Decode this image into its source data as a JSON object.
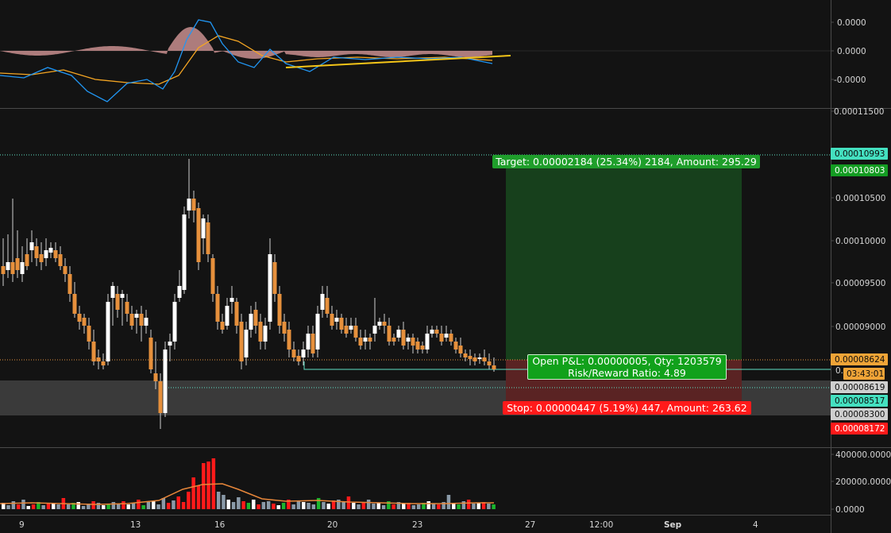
{
  "colors": {
    "background": "#131313",
    "up_candle": "#ffffff",
    "down_candle": "#e6903c",
    "wick": "#cfcfcf",
    "macd_line": "#2196f3",
    "signal_line": "#f5a623",
    "histogram": "#c98f8f",
    "trendline": "#f5c518",
    "target_zone": "#17401c",
    "stop_zone": "#5a2323",
    "target_label": "#1f9e2b",
    "stop_label": "#ff1a1a",
    "pnl_label": "#11a11b",
    "support_band": "#3a3a3a",
    "dotted_line": "#5fe0c6",
    "vol_up": "#ffffff",
    "vol_down": "#ff1a1a",
    "vol_neutral": "#8a9aa8",
    "vol_green": "#1bb52d",
    "vol_ma": "#e8873a"
  },
  "macd_axis": {
    "labels": [
      "0.0000",
      "0.0000",
      "-0.0000"
    ]
  },
  "price_axis": {
    "labels": [
      "0.00011500",
      "0.00010500",
      "0.00010000",
      "0.00009500",
      "0.00009000"
    ],
    "partial_label": "0.",
    "tags": [
      {
        "name": "price-tag-cyan-top",
        "text": "0.00010993",
        "bg": "#44e0c0",
        "fg": "#0b0b0b"
      },
      {
        "name": "price-tag-target",
        "text": "0.00010803",
        "bg": "#149c22",
        "fg": "#ffffff"
      },
      {
        "name": "price-tag-current",
        "text": "0.00008624",
        "bg": "#f0a437",
        "fg": "#0b0b0b"
      },
      {
        "name": "price-tag-countdown",
        "text": "03:43:01",
        "bg": "#f0a437",
        "fg": "#0b0b0b"
      },
      {
        "name": "price-tag-band-top",
        "text": "0.00008619",
        "bg": "#cfcfcf",
        "fg": "#0b0b0b"
      },
      {
        "name": "price-tag-entry",
        "text": "0.00008517",
        "bg": "#44e0c0",
        "fg": "#0b0b0b"
      },
      {
        "name": "price-tag-band-bottom",
        "text": "0.00008300",
        "bg": "#cfcfcf",
        "fg": "#0b0b0b"
      },
      {
        "name": "price-tag-stop",
        "text": "0.00008172",
        "bg": "#ff1a1a",
        "fg": "#ffffff"
      }
    ]
  },
  "volume_axis": {
    "labels": [
      "400000.0000",
      "200000.0000",
      "0.0000"
    ]
  },
  "time_axis": {
    "labels": [
      "9",
      "13",
      "16",
      "20",
      "23",
      "27",
      "12:00",
      "Sep",
      "4"
    ]
  },
  "position": {
    "target_label": "Target: 0.00002184 (25.34%) 2184, Amount: 295.29",
    "stop_label": "Stop: 0.00000447 (5.19%) 447, Amount: 263.62",
    "pnl_line1": "Open P&L: 0.00000005, Qty: 1203579",
    "pnl_line2": "Risk/Reward Ratio: 4.89"
  }
}
